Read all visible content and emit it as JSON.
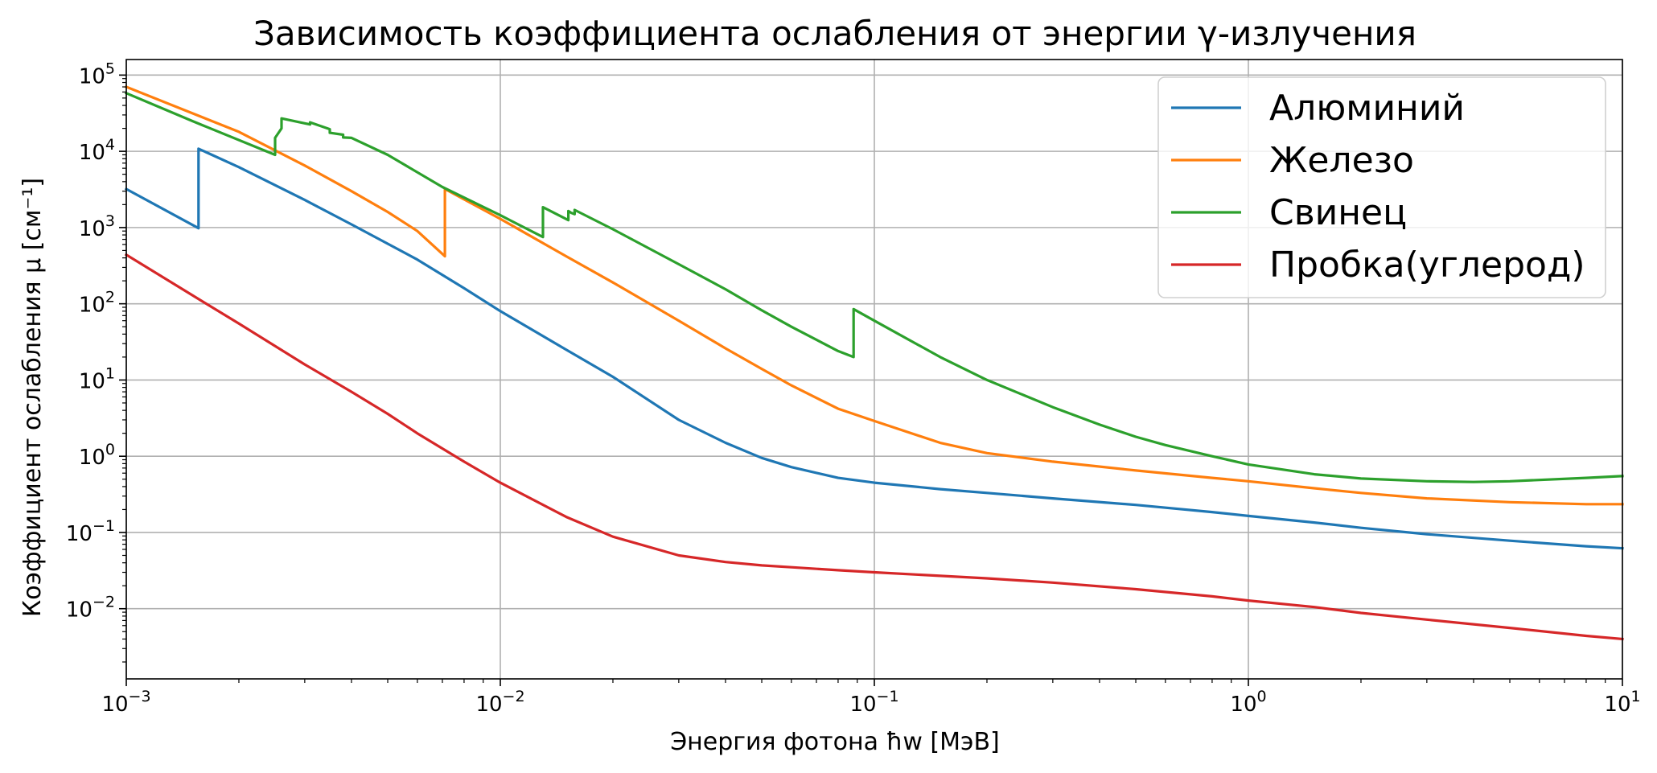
{
  "chart_data": {
    "type": "line",
    "title": "Зависимость коэффициента ослабления от энергии γ-излучения",
    "xlabel": "Энергия фотона ħw [МэВ]",
    "ylabel": "Коэффициент ослабления μ [см⁻¹]",
    "xscale": "log",
    "yscale": "log",
    "xlim": [
      0.001,
      10
    ],
    "ylim": [
      0.0012,
      160000
    ],
    "grid": true,
    "legend_position": "top-right",
    "x_ticks": [
      {
        "value": 0.001,
        "base": "10",
        "exp": "−3"
      },
      {
        "value": 0.01,
        "base": "10",
        "exp": "−2"
      },
      {
        "value": 0.1,
        "base": "10",
        "exp": "−1"
      },
      {
        "value": 1,
        "base": "10",
        "exp": "0"
      },
      {
        "value": 10,
        "base": "10",
        "exp": "1"
      }
    ],
    "y_ticks": [
      {
        "value": 0.01,
        "base": "10",
        "exp": "−2"
      },
      {
        "value": 0.1,
        "base": "10",
        "exp": "−1"
      },
      {
        "value": 1,
        "base": "10",
        "exp": "0"
      },
      {
        "value": 10,
        "base": "10",
        "exp": "1"
      },
      {
        "value": 100,
        "base": "10",
        "exp": "2"
      },
      {
        "value": 1000,
        "base": "10",
        "exp": "3"
      },
      {
        "value": 10000,
        "base": "10",
        "exp": "4"
      },
      {
        "value": 100000,
        "base": "10",
        "exp": "5"
      }
    ],
    "series": [
      {
        "name": "Алюминий",
        "color": "#1f77b4",
        "points": [
          [
            0.001,
            3200
          ],
          [
            0.00156,
            980
          ],
          [
            0.00156,
            10800
          ],
          [
            0.002,
            6200
          ],
          [
            0.003,
            2300
          ],
          [
            0.004,
            1100
          ],
          [
            0.006,
            380
          ],
          [
            0.008,
            160
          ],
          [
            0.01,
            80
          ],
          [
            0.015,
            25
          ],
          [
            0.02,
            11
          ],
          [
            0.03,
            3.0
          ],
          [
            0.04,
            1.5
          ],
          [
            0.05,
            0.95
          ],
          [
            0.06,
            0.72
          ],
          [
            0.08,
            0.52
          ],
          [
            0.1,
            0.45
          ],
          [
            0.15,
            0.37
          ],
          [
            0.2,
            0.33
          ],
          [
            0.3,
            0.28
          ],
          [
            0.5,
            0.23
          ],
          [
            0.8,
            0.185
          ],
          [
            1,
            0.165
          ],
          [
            1.5,
            0.135
          ],
          [
            2,
            0.115
          ],
          [
            3,
            0.095
          ],
          [
            5,
            0.078
          ],
          [
            8,
            0.066
          ],
          [
            10,
            0.062
          ]
        ]
      },
      {
        "name": "Железо",
        "color": "#ff7f0e",
        "points": [
          [
            0.001,
            70000
          ],
          [
            0.002,
            18000
          ],
          [
            0.003,
            6500
          ],
          [
            0.004,
            3000
          ],
          [
            0.005,
            1600
          ],
          [
            0.006,
            900
          ],
          [
            0.00711,
            420
          ],
          [
            0.00711,
            3200
          ],
          [
            0.01,
            1300
          ],
          [
            0.015,
            420
          ],
          [
            0.02,
            190
          ],
          [
            0.03,
            60
          ],
          [
            0.04,
            26
          ],
          [
            0.05,
            14
          ],
          [
            0.06,
            8.5
          ],
          [
            0.08,
            4.2
          ],
          [
            0.1,
            2.9
          ],
          [
            0.15,
            1.5
          ],
          [
            0.2,
            1.1
          ],
          [
            0.3,
            0.85
          ],
          [
            0.5,
            0.65
          ],
          [
            0.8,
            0.52
          ],
          [
            1,
            0.47
          ],
          [
            1.5,
            0.38
          ],
          [
            2,
            0.33
          ],
          [
            3,
            0.28
          ],
          [
            5,
            0.25
          ],
          [
            8,
            0.235
          ],
          [
            10,
            0.235
          ]
        ]
      },
      {
        "name": "Свинец",
        "color": "#2ca02c",
        "points": [
          [
            0.001,
            58000
          ],
          [
            0.0015,
            25000
          ],
          [
            0.0025,
            9000
          ],
          [
            0.0025,
            15000
          ],
          [
            0.0026,
            20000
          ],
          [
            0.0026,
            27000
          ],
          [
            0.0031,
            22500
          ],
          [
            0.0031,
            24000
          ],
          [
            0.0035,
            19500
          ],
          [
            0.0035,
            17500
          ],
          [
            0.0038,
            16500
          ],
          [
            0.0038,
            15200
          ],
          [
            0.004,
            15000
          ],
          [
            0.005,
            9000
          ],
          [
            0.007,
            3400
          ],
          [
            0.01,
            1450
          ],
          [
            0.013,
            750
          ],
          [
            0.013,
            1850
          ],
          [
            0.0152,
            1250
          ],
          [
            0.0152,
            1650
          ],
          [
            0.0155,
            1550
          ],
          [
            0.0158,
            1500
          ],
          [
            0.0158,
            1700
          ],
          [
            0.02,
            950
          ],
          [
            0.03,
            330
          ],
          [
            0.04,
            155
          ],
          [
            0.05,
            82
          ],
          [
            0.06,
            50
          ],
          [
            0.08,
            24
          ],
          [
            0.088,
            20
          ],
          [
            0.088,
            85
          ],
          [
            0.1,
            60
          ],
          [
            0.15,
            20
          ],
          [
            0.2,
            10
          ],
          [
            0.3,
            4.4
          ],
          [
            0.4,
            2.6
          ],
          [
            0.5,
            1.8
          ],
          [
            0.6,
            1.4
          ],
          [
            0.8,
            1.0
          ],
          [
            1,
            0.78
          ],
          [
            1.5,
            0.58
          ],
          [
            2,
            0.51
          ],
          [
            3,
            0.47
          ],
          [
            4,
            0.46
          ],
          [
            5,
            0.47
          ],
          [
            8,
            0.52
          ],
          [
            10,
            0.55
          ]
        ]
      },
      {
        "name": "Пробка(углерод)",
        "color": "#d62728",
        "points": [
          [
            0.001,
            440
          ],
          [
            0.0015,
            130
          ],
          [
            0.002,
            55
          ],
          [
            0.003,
            16
          ],
          [
            0.004,
            7
          ],
          [
            0.005,
            3.6
          ],
          [
            0.006,
            2.0
          ],
          [
            0.008,
            0.85
          ],
          [
            0.01,
            0.45
          ],
          [
            0.015,
            0.16
          ],
          [
            0.02,
            0.088
          ],
          [
            0.03,
            0.05
          ],
          [
            0.04,
            0.041
          ],
          [
            0.05,
            0.037
          ],
          [
            0.06,
            0.035
          ],
          [
            0.08,
            0.032
          ],
          [
            0.1,
            0.03
          ],
          [
            0.15,
            0.027
          ],
          [
            0.2,
            0.025
          ],
          [
            0.3,
            0.022
          ],
          [
            0.5,
            0.018
          ],
          [
            0.8,
            0.0145
          ],
          [
            1,
            0.0128
          ],
          [
            1.5,
            0.0105
          ],
          [
            2,
            0.0088
          ],
          [
            3,
            0.0072
          ],
          [
            5,
            0.0056
          ],
          [
            8,
            0.0044
          ],
          [
            10,
            0.004
          ]
        ]
      }
    ]
  }
}
